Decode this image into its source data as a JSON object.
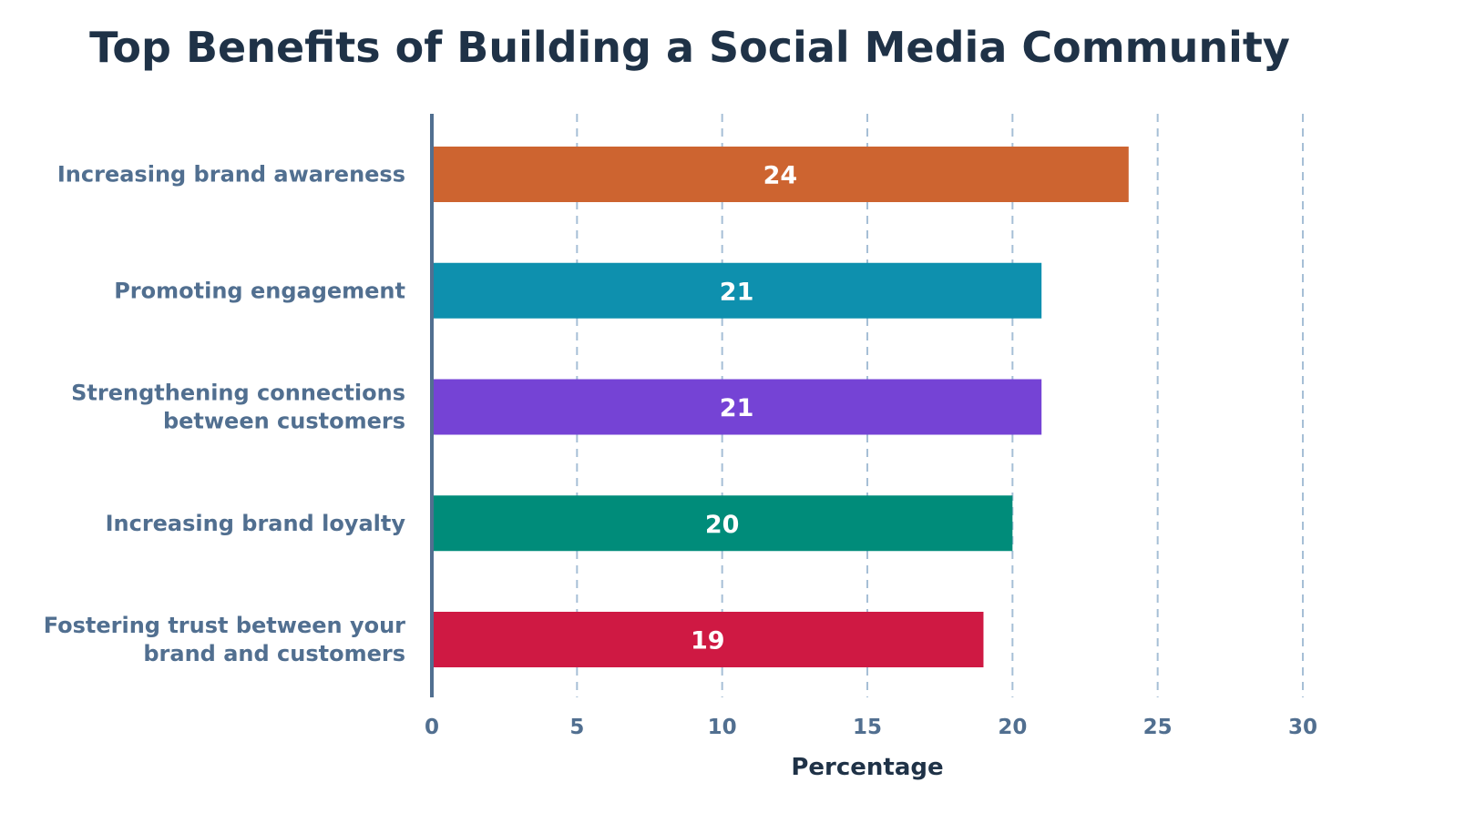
{
  "chart_data": {
    "type": "bar",
    "orientation": "horizontal",
    "title": "Top Benefits of Building a Social Media Community",
    "xlabel": "Percentage",
    "ylabel": "",
    "xlim": [
      0,
      30
    ],
    "xticks": [
      "0",
      "5",
      "10",
      "15",
      "20",
      "25",
      "30"
    ],
    "grid": true,
    "categories": [
      [
        "Increasing brand awareness"
      ],
      [
        "Promoting engagement"
      ],
      [
        "Strengthening connections",
        "between customers"
      ],
      [
        "Increasing brand loyalty"
      ],
      [
        "Fostering trust between your",
        "brand and customers"
      ]
    ],
    "values": [
      24,
      21,
      21,
      20,
      19
    ],
    "colors": [
      "#cd6430",
      "#0e90ae",
      "#7543d5",
      "#008c7a",
      "#cf1943"
    ]
  }
}
